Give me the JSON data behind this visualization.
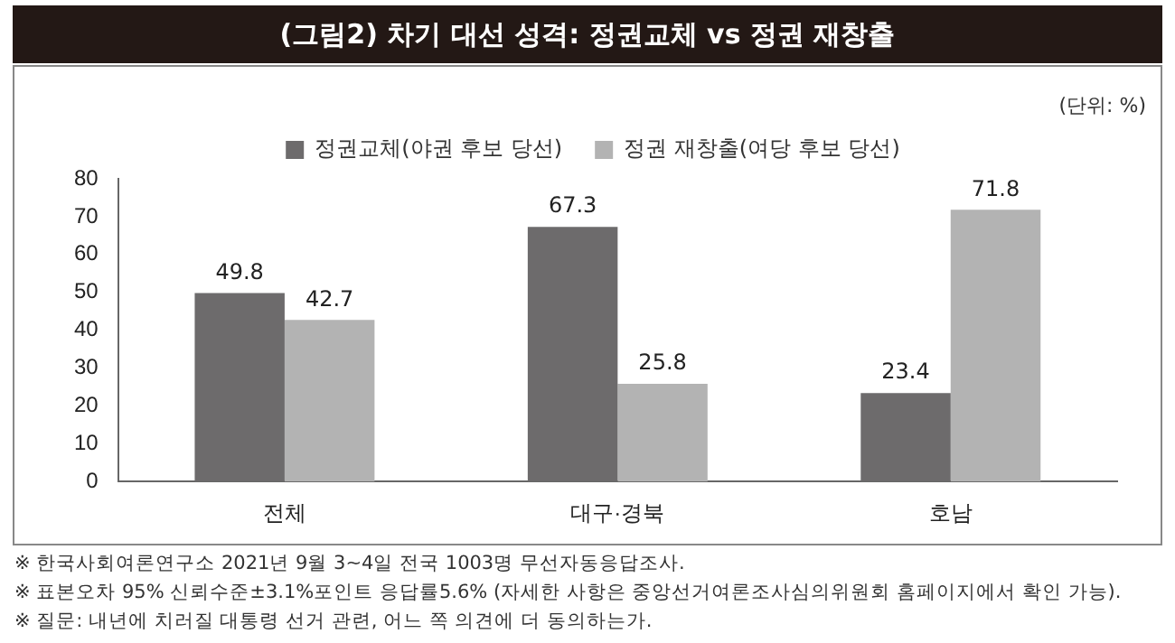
{
  "chart_data": {
    "type": "bar",
    "title": "(그림2) 차기 대선 성격: 정권교체 vs 정권 재창출",
    "categories": [
      "전체",
      "대구·경북",
      "호남"
    ],
    "series": [
      {
        "name": "정권교체(야권 후보 당선)",
        "color": "#6d6b6c",
        "values": [
          49.8,
          67.3,
          23.4
        ]
      },
      {
        "name": "정권 재창출(여당 후보 당선)",
        "color": "#b3b3b3",
        "values": [
          42.7,
          25.8,
          71.8
        ]
      }
    ],
    "ylim": [
      0,
      80
    ],
    "yticks": [
      0,
      10,
      20,
      30,
      40,
      50,
      60,
      70,
      80
    ],
    "grid": false,
    "legend": "top",
    "data_labels": true,
    "annotations": [
      "(단위: %)",
      "※ 한국사회여론연구소 2021년 9월 3~4일 전국 1003명 무선자동응답조사.",
      "※ 표본오차 95% 신뢰수준±3.1%포인트 응답률5.6% (자세한 사항은 중앙선거여론조사심의위원회 홈페이지에서 확인 가능).",
      "※ 질문: 내년에 치러질 대통령 선거 관련, 어느 쪽 의견에 더 동의하는가."
    ]
  }
}
